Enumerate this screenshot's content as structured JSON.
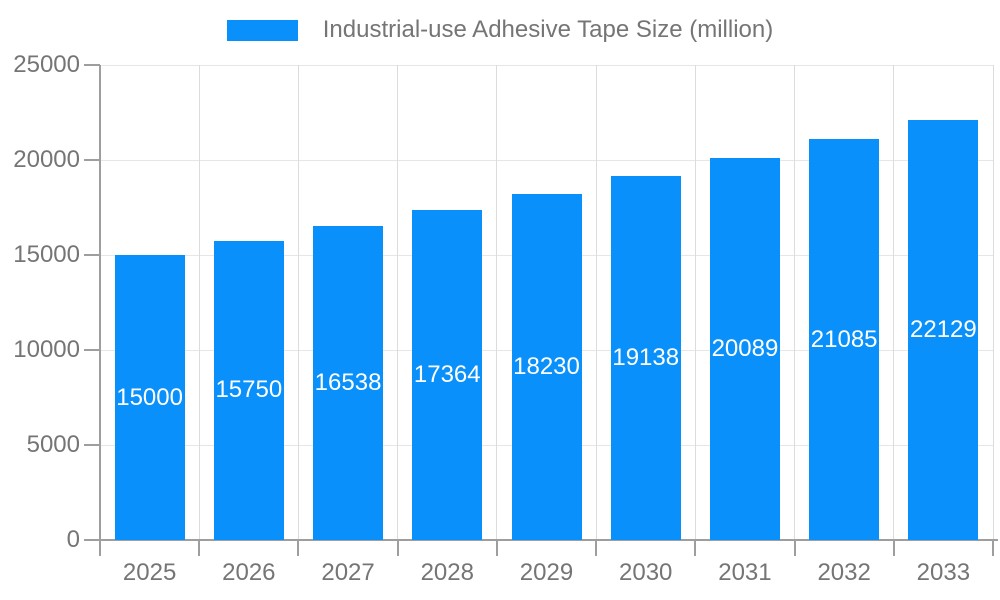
{
  "legend": {
    "series_label": "Industrial-use Adhesive Tape Size (million)"
  },
  "chart_data": {
    "type": "bar",
    "title": "Industrial-use Adhesive Tape Size (million)",
    "series_name": "Industrial-use Adhesive Tape Size (million)",
    "categories": [
      "2025",
      "2026",
      "2027",
      "2028",
      "2029",
      "2030",
      "2031",
      "2032",
      "2033"
    ],
    "values": [
      15000,
      15750,
      16538,
      17364,
      18230,
      19138,
      20089,
      21085,
      22129
    ],
    "value_labels": [
      "15000",
      "15750",
      "16538",
      "17364",
      "18230",
      "19138",
      "20089",
      "21085",
      "22129"
    ],
    "xlabel": "",
    "ylabel": "",
    "ylim": [
      0,
      25000
    ],
    "yticks": [
      0,
      5000,
      10000,
      15000,
      20000,
      25000
    ],
    "yticklabels": [
      "0",
      "5000",
      "10000",
      "15000",
      "20000",
      "25000"
    ],
    "grid": "horizontal gridlines plus vertical gridlines at category boundaries",
    "legend_position": "top-center",
    "value_label_position": "inside-middle"
  },
  "colors": {
    "bar": "#0a90fa",
    "value_label_text": "#ffffff",
    "axis_text": "#757575",
    "axis_line": "#9e9e9e",
    "hgrid": "#e6e6e6",
    "vgrid": "#dcdcdc",
    "background": "#ffffff"
  }
}
